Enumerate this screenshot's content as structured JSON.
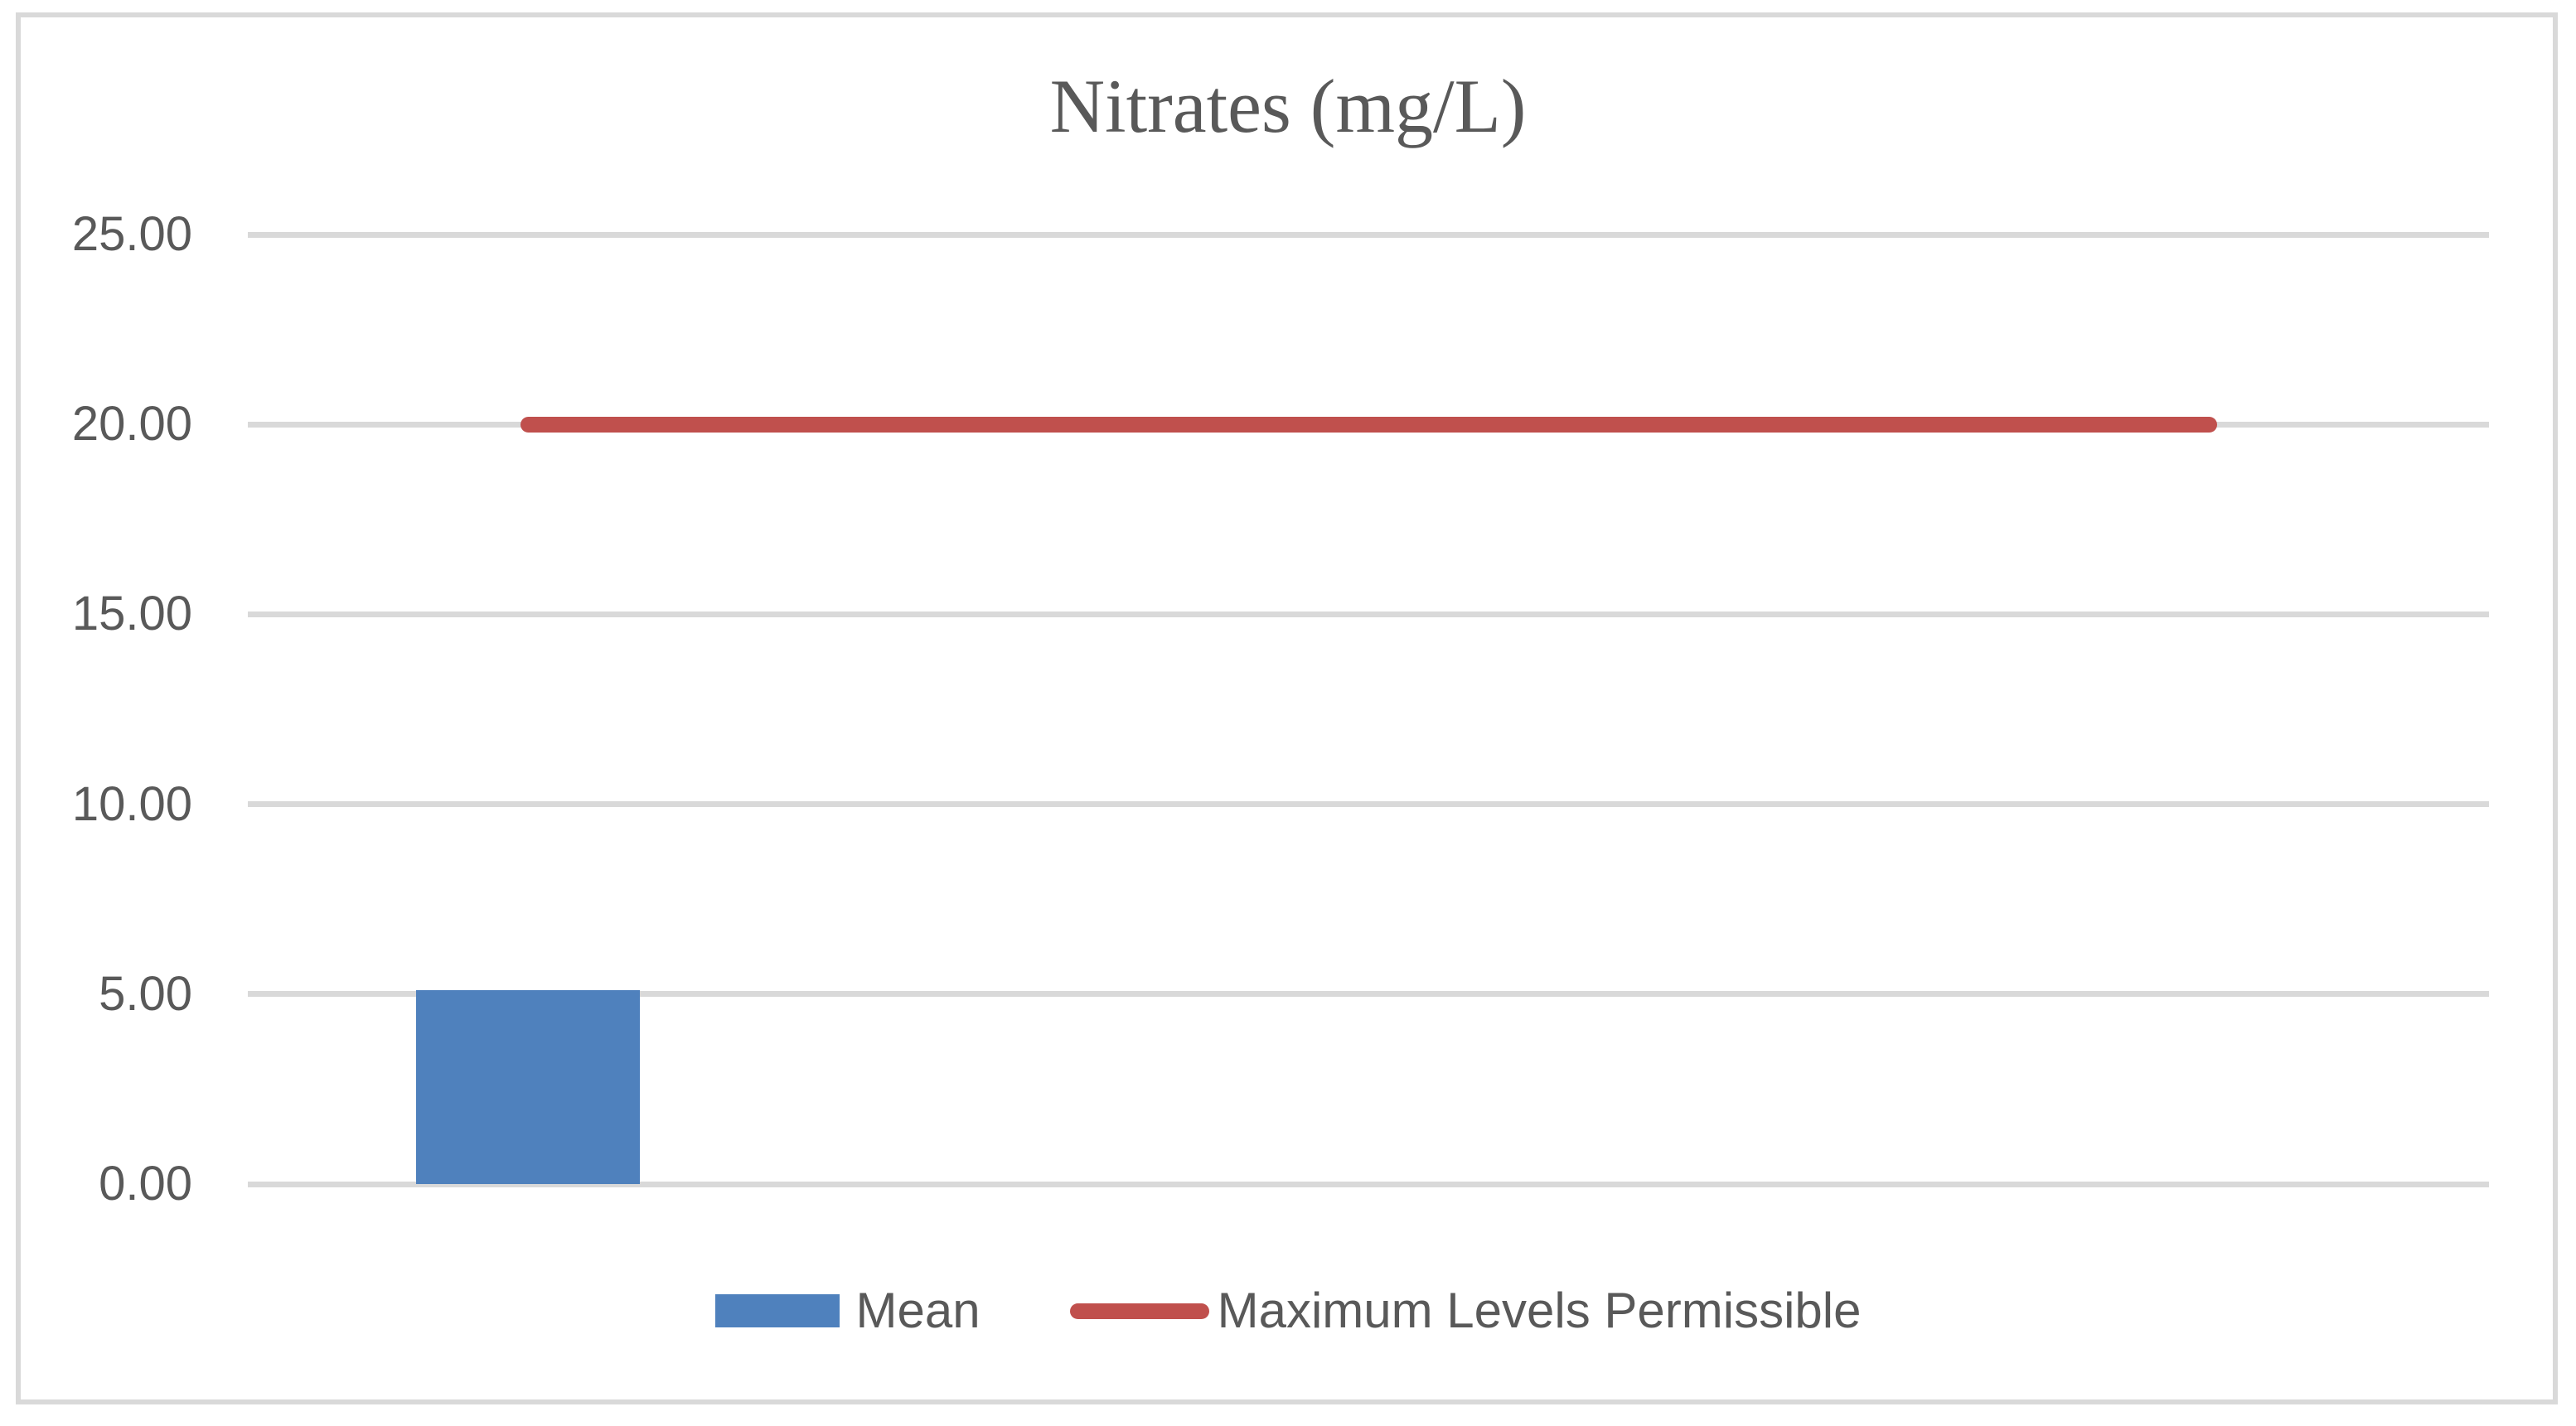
{
  "colors": {
    "bar_blue": "#4F81BD",
    "line_red": "#C0504D",
    "gridline": "#D9D9D9",
    "frame_border": "#D9D9D9",
    "text_gray": "#595959"
  },
  "chart_data": {
    "type": "bar",
    "title": "Nitrates (mg/L)",
    "categories": [
      "",
      "",
      "",
      ""
    ],
    "series": [
      {
        "name": "Mean",
        "type": "bar",
        "color": "#4F81BD",
        "values": [
          5.1,
          null,
          null,
          null
        ]
      },
      {
        "name": "Maximum Levels Permissible",
        "type": "line",
        "color": "#C0504D",
        "values": [
          20,
          20,
          20,
          20
        ]
      }
    ],
    "ylim": [
      0,
      25
    ],
    "yticks": [
      "0.00",
      "5.00",
      "10.00",
      "15.00",
      "20.00",
      "25.00"
    ],
    "grid": "horizontal",
    "legend_position": "bottom"
  }
}
